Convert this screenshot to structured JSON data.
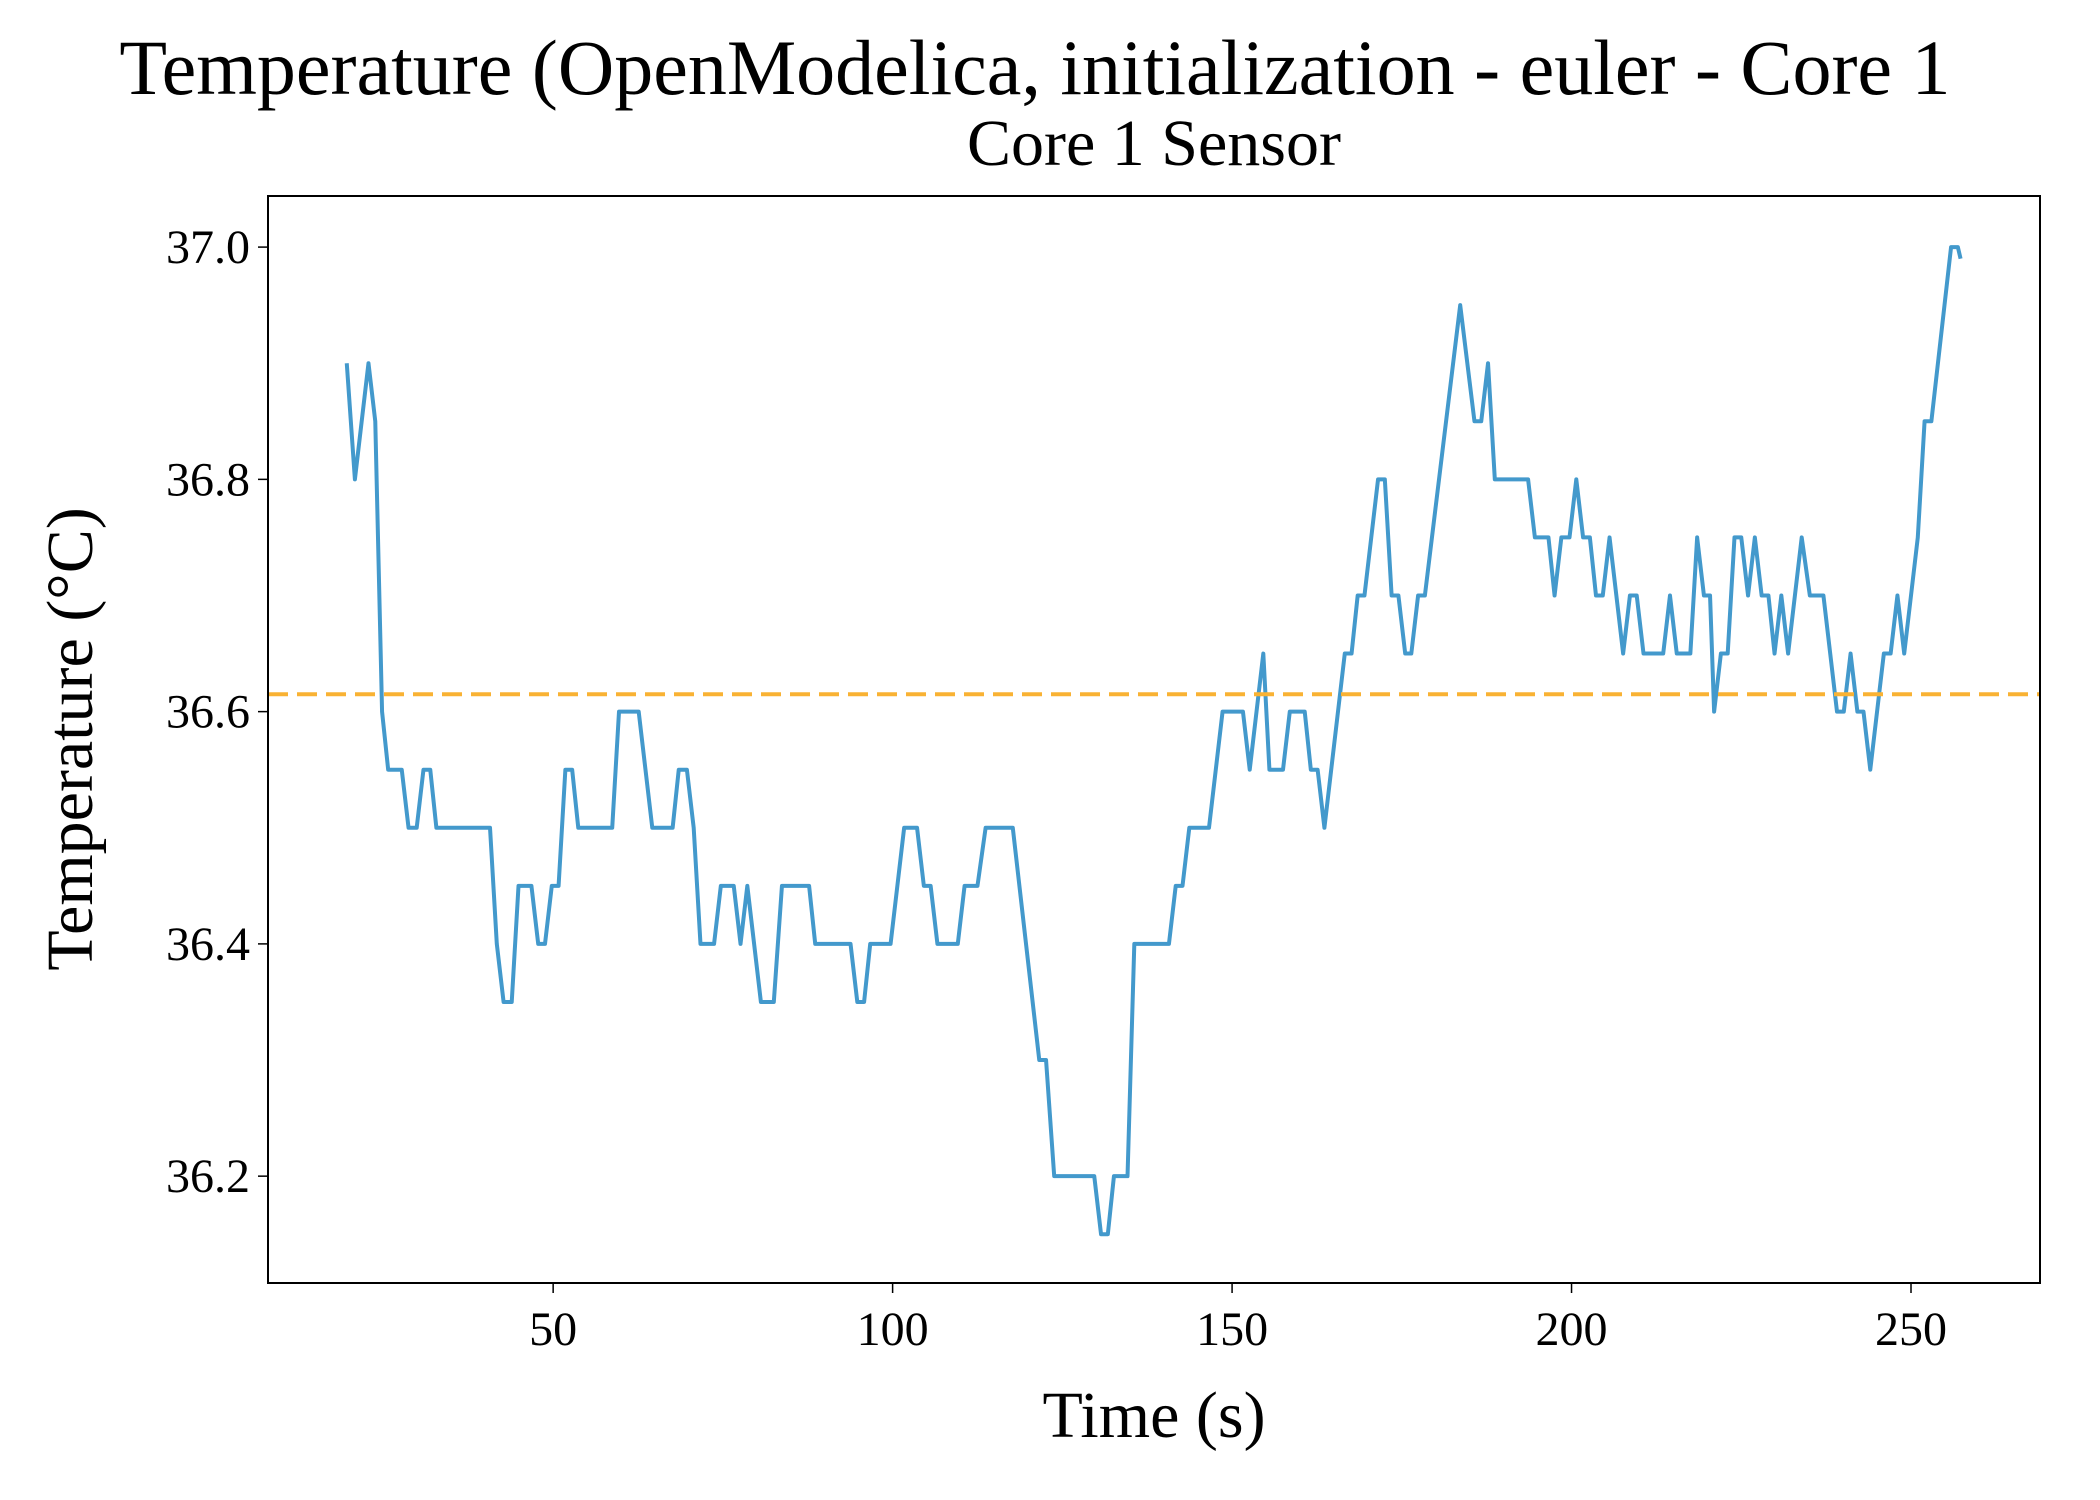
{
  "chart_data": {
    "type": "line",
    "title": "Temperature (OpenModelica, initialization - euler - Core 1",
    "subtitle": "Core 1 Sensor",
    "x_label": "Time (s)",
    "y_label": "Temperature (°C)",
    "x": [
      19.6,
      20.8,
      22.8,
      23.8,
      24.8,
      25.7,
      27.7,
      28.7,
      29.9,
      30.9,
      31.9,
      32.8,
      40.7,
      41.7,
      42.7,
      43.9,
      44.9,
      46.8,
      47.8,
      48.8,
      49.8,
      50.8,
      51.8,
      52.8,
      53.7,
      58.7,
      59.7,
      62.6,
      64.6,
      67.6,
      68.5,
      69.7,
      70.7,
      71.7,
      73.7,
      74.7,
      76.6,
      77.6,
      78.6,
      80.6,
      82.5,
      83.7,
      87.7,
      88.6,
      93.8,
      94.8,
      95.8,
      96.7,
      99.7,
      101.7,
      103.6,
      104.6,
      105.6,
      106.6,
      109.6,
      110.6,
      112.5,
      113.7,
      117.7,
      121.6,
      122.6,
      123.8,
      129.7,
      130.7,
      131.7,
      132.6,
      134.6,
      135.6,
      140.7,
      141.7,
      142.7,
      143.7,
      146.6,
      148.6,
      151.6,
      152.6,
      154.6,
      155.5,
      157.5,
      158.5,
      160.7,
      161.6,
      162.6,
      163.6,
      166.6,
      167.6,
      168.5,
      169.5,
      171.5,
      172.5,
      173.5,
      174.5,
      175.5,
      176.4,
      177.4,
      178.4,
      183.6,
      185.7,
      186.7,
      187.7,
      188.7,
      193.6,
      194.6,
      196.6,
      197.5,
      198.5,
      199.7,
      200.7,
      201.7,
      202.7,
      203.6,
      204.6,
      205.6,
      207.6,
      208.6,
      209.6,
      210.6,
      213.5,
      214.5,
      215.5,
      217.5,
      218.5,
      219.5,
      220.4,
      221.0,
      222.0,
      223.0,
      224.0,
      225.0,
      226.0,
      227.0,
      228.0,
      229.0,
      229.9,
      230.9,
      231.9,
      233.9,
      235.1,
      237.1,
      239.1,
      240.1,
      241.1,
      242.1,
      243.0,
      244.0,
      246.0,
      247.0,
      248.0,
      249.0,
      251.0,
      252.0,
      253.0,
      255.9,
      256.9,
      257.3
    ],
    "series": [
      {
        "color": "#4399cc",
        "values": [
          36.9,
          36.8,
          36.9,
          36.85,
          36.6,
          36.55,
          36.55,
          36.5,
          36.5,
          36.55,
          36.55,
          36.5,
          36.5,
          36.4,
          36.35,
          36.35,
          36.45,
          36.45,
          36.4,
          36.4,
          36.45,
          36.45,
          36.55,
          36.55,
          36.5,
          36.5,
          36.6,
          36.6,
          36.5,
          36.5,
          36.55,
          36.55,
          36.5,
          36.4,
          36.4,
          36.45,
          36.45,
          36.4,
          36.45,
          36.35,
          36.35,
          36.45,
          36.45,
          36.4,
          36.4,
          36.35,
          36.35,
          36.4,
          36.4,
          36.5,
          36.5,
          36.45,
          36.45,
          36.4,
          36.4,
          36.45,
          36.45,
          36.5,
          36.5,
          36.3,
          36.3,
          36.2,
          36.2,
          36.15,
          36.15,
          36.2,
          36.2,
          36.4,
          36.4,
          36.45,
          36.45,
          36.5,
          36.5,
          36.6,
          36.6,
          36.55,
          36.65,
          36.55,
          36.55,
          36.6,
          36.6,
          36.55,
          36.55,
          36.5,
          36.65,
          36.65,
          36.7,
          36.7,
          36.8,
          36.8,
          36.7,
          36.7,
          36.65,
          36.65,
          36.7,
          36.7,
          36.95,
          36.85,
          36.85,
          36.9,
          36.8,
          36.8,
          36.75,
          36.75,
          36.7,
          36.75,
          36.75,
          36.8,
          36.75,
          36.75,
          36.7,
          36.7,
          36.75,
          36.65,
          36.7,
          36.7,
          36.65,
          36.65,
          36.7,
          36.65,
          36.65,
          36.75,
          36.7,
          36.7,
          36.6,
          36.65,
          36.65,
          36.75,
          36.75,
          36.7,
          36.75,
          36.7,
          36.7,
          36.65,
          36.7,
          36.65,
          36.75,
          36.7,
          36.7,
          36.6,
          36.6,
          36.65,
          36.6,
          36.6,
          36.55,
          36.65,
          36.65,
          36.7,
          36.65,
          36.75,
          36.85,
          36.85,
          37.0,
          37.0,
          36.99
        ]
      }
    ],
    "reference_line": {
      "value": 36.615,
      "color": "#f9b233"
    },
    "xlim": [
      8,
      269
    ],
    "ylim": [
      36.108,
      37.044
    ],
    "xticks": [
      50,
      100,
      150,
      200,
      250
    ],
    "yticks": [
      36.2,
      36.4,
      36.6,
      36.8,
      {
        "value": 37,
        "label": "37.0"
      }
    ]
  }
}
